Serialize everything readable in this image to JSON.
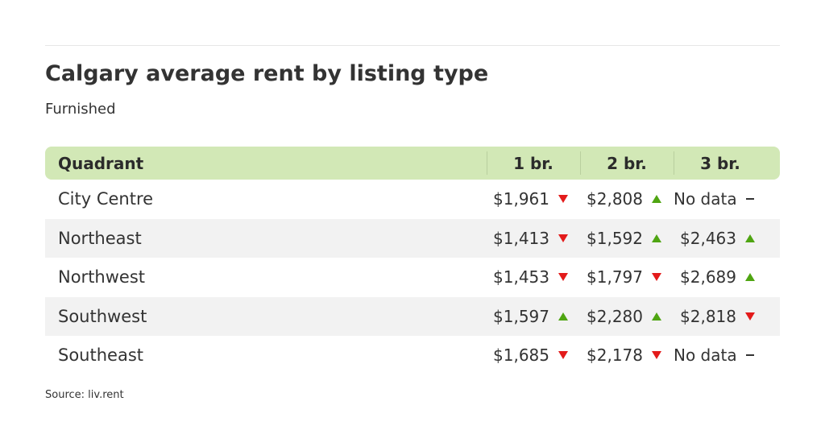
{
  "title": "Calgary average rent by listing type",
  "subtitle": "Furnished",
  "source": "Source: liv.rent",
  "colors": {
    "header_bg": "#d2e8b6",
    "up": "#4fa512",
    "down": "#e31b1b",
    "neutral": "#333333",
    "row_shade": "#f2f2f2"
  },
  "chart_data": {
    "type": "table",
    "title": "Calgary average rent by listing type",
    "subtitle": "Furnished",
    "columns": [
      "Quadrant",
      "1 br.",
      "2 br.",
      "3 br."
    ],
    "rows": [
      {
        "name": "City Centre",
        "cells": [
          {
            "value": "$1,961",
            "trend": "down",
            "icon": "down-triangle-icon"
          },
          {
            "value": "$2,808",
            "trend": "up",
            "icon": "up-triangle-icon"
          },
          {
            "value": "No data",
            "trend": "none",
            "icon": "dash-icon"
          }
        ]
      },
      {
        "name": "Northeast",
        "cells": [
          {
            "value": "$1,413",
            "trend": "down",
            "icon": "down-triangle-icon"
          },
          {
            "value": "$1,592",
            "trend": "up",
            "icon": "up-triangle-icon"
          },
          {
            "value": "$2,463",
            "trend": "up",
            "icon": "up-triangle-icon"
          }
        ]
      },
      {
        "name": "Northwest",
        "cells": [
          {
            "value": "$1,453",
            "trend": "down",
            "icon": "down-triangle-icon"
          },
          {
            "value": "$1,797",
            "trend": "down",
            "icon": "down-triangle-icon"
          },
          {
            "value": "$2,689",
            "trend": "up",
            "icon": "up-triangle-icon"
          }
        ]
      },
      {
        "name": "Southwest",
        "cells": [
          {
            "value": "$1,597",
            "trend": "up",
            "icon": "up-triangle-icon"
          },
          {
            "value": "$2,280",
            "trend": "up",
            "icon": "up-triangle-icon"
          },
          {
            "value": "$2,818",
            "trend": "down",
            "icon": "down-triangle-icon"
          }
        ]
      },
      {
        "name": "Southeast",
        "cells": [
          {
            "value": "$1,685",
            "trend": "down",
            "icon": "down-triangle-icon"
          },
          {
            "value": "$2,178",
            "trend": "down",
            "icon": "down-triangle-icon"
          },
          {
            "value": "No data",
            "trend": "none",
            "icon": "dash-icon"
          }
        ]
      }
    ]
  }
}
